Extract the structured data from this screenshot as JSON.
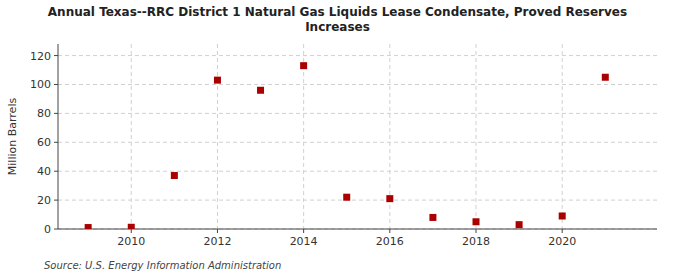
{
  "chart_data": {
    "type": "scatter",
    "title": "Annual Texas--RRC District 1 Natural Gas Liquids Lease Condensate, Proved Reserves\nIncreases",
    "y_label": "Million Barrels",
    "annotations": [
      "Source: U.S. Energy Information Administration"
    ],
    "x": [
      2009,
      2010,
      2011,
      2012,
      2013,
      2014,
      2015,
      2016,
      2017,
      2018,
      2019,
      2020,
      2021
    ],
    "values": [
      1.0,
      1.2,
      37.0,
      103.0,
      96.0,
      113.0,
      22.0,
      21.0,
      8.0,
      5.0,
      3.0,
      9.0,
      105.0
    ],
    "color": "#aa0000",
    "marker": "square",
    "xlim": [
      2008.3,
      2022.2
    ],
    "xticks": [
      2010,
      2012,
      2014,
      2016,
      2018,
      2020
    ],
    "ylim": [
      0,
      128
    ],
    "yticks": [
      0,
      20,
      40,
      60,
      80,
      100,
      120
    ],
    "grid": true
  }
}
